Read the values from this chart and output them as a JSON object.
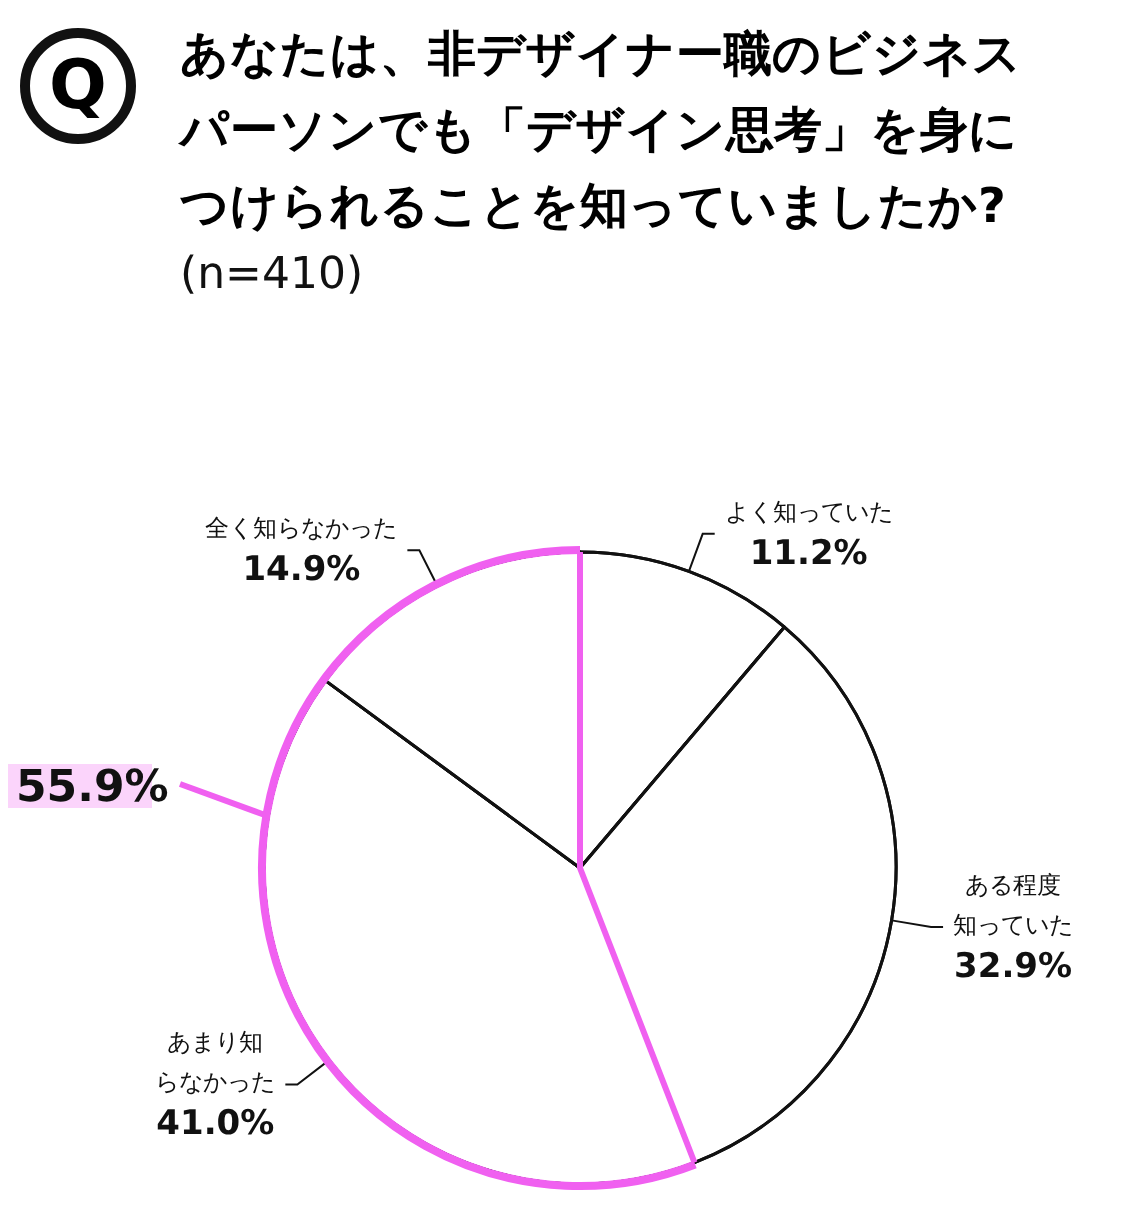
{
  "chart_data": {
    "type": "pie",
    "title": "あなたは、非デザイナー職のビジネスパーソンでも「デザイン思考」を身につけられることを知っていましたか?",
    "subtitle": "(n=410)",
    "categories": [
      "よく知っていた",
      "ある程度知っていた",
      "あまり知らなかった",
      "全く知らなかった"
    ],
    "values": [
      11.2,
      32.9,
      41.0,
      14.9
    ],
    "value_labels": [
      "11.2%",
      "32.9%",
      "41.0%",
      "14.9%"
    ],
    "colors": [
      "#ffffff",
      "#ffffff",
      "#ffffff",
      "#ffffff"
    ],
    "annotations": [
      "Q",
      "55.9%"
    ],
    "legend": false
  }
}
